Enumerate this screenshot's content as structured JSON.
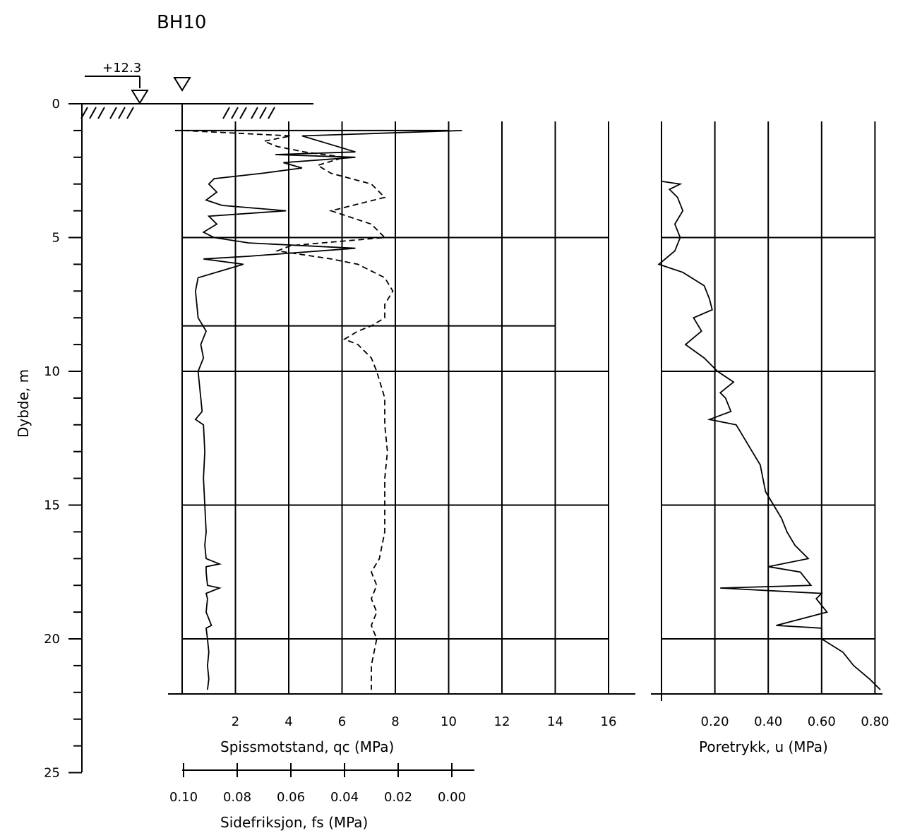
{
  "chart_data": {
    "type": "line",
    "title": "BH10",
    "elevation_label": "+12.3",
    "depth_axis": {
      "label": "Dybde, m",
      "range": [
        0,
        25
      ],
      "ticks": [
        0,
        5,
        10,
        15,
        20,
        25
      ]
    },
    "qc_axis": {
      "label": "Spissmotstand, qc (MPa)",
      "range": [
        0,
        16
      ],
      "ticks": [
        2,
        4,
        6,
        8,
        10,
        12,
        14,
        16
      ]
    },
    "fs_axis": {
      "label": "Sidefriksjon, fs (MPa)",
      "range": [
        0.1,
        0.0
      ],
      "tick_labels": [
        "0.10",
        "0.08",
        "0.06",
        "0.04",
        "0.02",
        "0.00"
      ]
    },
    "u_axis": {
      "label": "Poretrykk, u (MPa)",
      "range": [
        0,
        0.8
      ],
      "tick_labels": [
        "0.20",
        "0.40",
        "0.60",
        "0.80"
      ]
    },
    "series": [
      {
        "key": "qc",
        "style": "solid",
        "depth": [
          1.0,
          1.2,
          1.5,
          1.8,
          1.9,
          2.0,
          2.2,
          2.4,
          2.6,
          2.8,
          3.0,
          3.3,
          3.6,
          3.8,
          4.0,
          4.2,
          4.5,
          4.8,
          5.0,
          5.2,
          5.4,
          5.7,
          5.8,
          6.0,
          6.5,
          7.0,
          7.5,
          8.0,
          8.5,
          9.0,
          9.5,
          10.0,
          10.5,
          11.0,
          11.5,
          11.8,
          12.0,
          13.0,
          14.0,
          15.0,
          16.0,
          16.5,
          17.0,
          17.2,
          17.3,
          17.5,
          18.0,
          18.1,
          18.3,
          18.5,
          19.0,
          19.5,
          19.6,
          20.0,
          20.5,
          21.0,
          21.5,
          21.9
        ],
        "values": [
          10.5,
          4.5,
          5.5,
          6.5,
          3.5,
          6.5,
          3.8,
          4.5,
          3.0,
          1.2,
          1.0,
          1.3,
          0.9,
          1.5,
          3.9,
          1.0,
          1.3,
          0.8,
          1.2,
          2.5,
          6.5,
          2.5,
          0.8,
          2.3,
          0.6,
          0.5,
          0.55,
          0.6,
          0.9,
          0.7,
          0.8,
          0.6,
          0.65,
          0.7,
          0.75,
          0.5,
          0.8,
          0.85,
          0.8,
          0.85,
          0.9,
          0.85,
          0.9,
          1.4,
          0.9,
          0.9,
          0.95,
          1.4,
          0.9,
          0.95,
          0.9,
          1.1,
          0.9,
          0.95,
          1.0,
          0.95,
          1.0,
          0.95
        ]
      },
      {
        "key": "fs",
        "style": "dashed",
        "depth": [
          1.0,
          1.2,
          1.4,
          1.6,
          1.8,
          2.0,
          2.3,
          2.6,
          3.0,
          3.5,
          4.0,
          4.5,
          5.0,
          5.3,
          5.5,
          5.8,
          6.0,
          6.5,
          7.0,
          7.5,
          8.0,
          8.3,
          8.5,
          8.8,
          9.0,
          9.5,
          10.0,
          11.0,
          12.0,
          13.0,
          14.0,
          15.0,
          16.0,
          17.0,
          17.5,
          18.0,
          18.5,
          19.0,
          19.5,
          20.0,
          21.0,
          21.9
        ],
        "values": [
          0.1,
          0.06,
          0.07,
          0.065,
          0.055,
          0.04,
          0.05,
          0.045,
          0.03,
          0.025,
          0.045,
          0.03,
          0.025,
          0.06,
          0.065,
          0.045,
          0.035,
          0.025,
          0.022,
          0.025,
          0.025,
          0.03,
          0.035,
          0.04,
          0.035,
          0.03,
          0.028,
          0.025,
          0.025,
          0.024,
          0.025,
          0.025,
          0.025,
          0.027,
          0.03,
          0.028,
          0.03,
          0.028,
          0.03,
          0.028,
          0.03,
          0.03
        ]
      },
      {
        "key": "u",
        "style": "solid",
        "depth": [
          1.0,
          2.0,
          2.9,
          3.0,
          3.2,
          3.5,
          4.0,
          4.5,
          5.0,
          5.5,
          6.0,
          6.3,
          6.8,
          7.3,
          7.7,
          8.0,
          8.5,
          9.0,
          9.5,
          10.0,
          10.4,
          10.8,
          11.0,
          11.5,
          11.8,
          12.0,
          12.5,
          13.0,
          13.5,
          14.0,
          14.5,
          15.0,
          15.5,
          16.0,
          16.5,
          17.0,
          17.3,
          17.5,
          18.0,
          18.1,
          18.3,
          18.5,
          19.0,
          19.5,
          19.6,
          20.0,
          20.5,
          21.0,
          21.5,
          21.9
        ],
        "values": [
          0.0,
          0.0,
          0.0,
          0.07,
          0.03,
          0.06,
          0.08,
          0.05,
          0.07,
          0.05,
          -0.01,
          0.08,
          0.16,
          0.18,
          0.19,
          0.12,
          0.15,
          0.09,
          0.16,
          0.21,
          0.27,
          0.22,
          0.24,
          0.26,
          0.18,
          0.28,
          0.31,
          0.34,
          0.37,
          0.38,
          0.39,
          0.42,
          0.45,
          0.47,
          0.5,
          0.55,
          0.4,
          0.52,
          0.56,
          0.22,
          0.6,
          0.58,
          0.62,
          0.43,
          0.6,
          0.6,
          0.68,
          0.72,
          0.78,
          0.82
        ]
      }
    ]
  }
}
